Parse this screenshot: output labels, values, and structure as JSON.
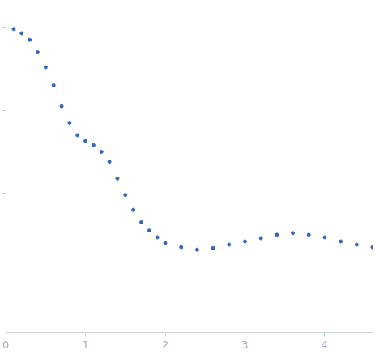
{
  "chart_data": {
    "type": "scatter",
    "x": [
      0.1,
      0.2,
      0.3,
      0.4,
      0.5,
      0.6,
      0.7,
      0.8,
      0.9,
      1.0,
      1.1,
      1.2,
      1.3,
      1.4,
      1.5,
      1.6,
      1.7,
      1.8,
      1.9,
      2.0,
      2.2,
      2.4,
      2.6,
      2.8,
      3.0,
      3.2,
      3.4,
      3.6,
      3.8,
      4.0,
      4.2,
      4.4,
      4.6
    ],
    "values": [
      0.955,
      0.851,
      0.708,
      0.501,
      0.331,
      0.2,
      0.112,
      0.0708,
      0.0501,
      0.0427,
      0.038,
      0.0316,
      0.024,
      0.0151,
      0.00955,
      0.0063,
      0.00447,
      0.00355,
      0.00295,
      0.00251,
      0.00224,
      0.00209,
      0.00219,
      0.0024,
      0.00263,
      0.00288,
      0.00316,
      0.00331,
      0.00316,
      0.00295,
      0.00263,
      0.0024,
      0.00224
    ],
    "color": "#3a66b8",
    "marker": "circle",
    "xlim": [
      0,
      4.6
    ],
    "xticks": [
      0,
      1,
      2,
      3,
      4
    ],
    "ylim": [
      0.00021,
      2.0
    ],
    "yticks": [
      0.01,
      0.1,
      1
    ],
    "log": "y",
    "grid": false,
    "tick_labels": "x"
  }
}
